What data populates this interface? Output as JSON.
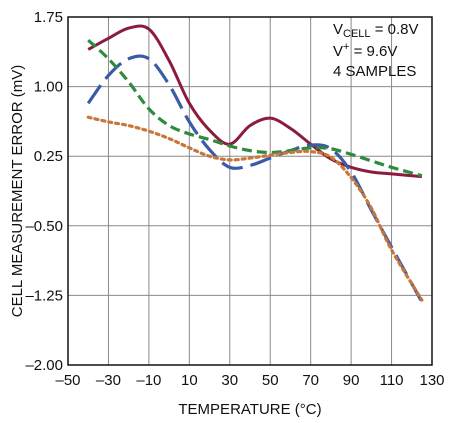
{
  "chart_data": {
    "type": "line",
    "title": "",
    "xlabel": "TEMPERATURE (°C)",
    "ylabel": "CELL MEASUREMENT ERROR (mV)",
    "xlim": [
      -50,
      130
    ],
    "ylim": [
      -2.0,
      1.75
    ],
    "x_ticks": [
      -50,
      -30,
      -10,
      10,
      30,
      50,
      70,
      90,
      110,
      130
    ],
    "x_tick_labels": [
      "–50",
      "–30",
      "–10",
      "10",
      "30",
      "50",
      "70",
      "90",
      "110",
      "130"
    ],
    "y_ticks": [
      -2.0,
      -1.25,
      -0.5,
      0.25,
      1.0,
      1.75
    ],
    "y_tick_labels": [
      "–2.00",
      "–1.25",
      "–0.50",
      "0.25",
      "1.00",
      "1.75"
    ],
    "grid": true,
    "annotation": {
      "line1_main": "V",
      "line1_sub": "CELL",
      "line1_rest": " = 0.8V",
      "line2_main": "V",
      "line2_sup": "+",
      "line2_rest": " = 9.6V",
      "line3": "4 SAMPLES"
    },
    "series": [
      {
        "style": "solid",
        "color": "#8B1C3C",
        "x": [
          -40,
          -30,
          -20,
          -10,
          0,
          10,
          20,
          30,
          40,
          50,
          60,
          70,
          80,
          90,
          100,
          110,
          125
        ],
        "y": [
          1.4,
          1.52,
          1.63,
          1.62,
          1.28,
          0.82,
          0.53,
          0.38,
          0.58,
          0.66,
          0.55,
          0.38,
          0.22,
          0.13,
          0.08,
          0.06,
          0.03
        ]
      },
      {
        "style": "long-dash",
        "color": "#3A5BA8",
        "x": [
          -40,
          -30,
          -20,
          -10,
          0,
          10,
          20,
          30,
          40,
          50,
          60,
          70,
          80,
          90,
          100,
          110,
          125
        ],
        "y": [
          0.82,
          1.12,
          1.3,
          1.3,
          1.02,
          0.62,
          0.32,
          0.13,
          0.15,
          0.23,
          0.31,
          0.37,
          0.33,
          0.08,
          -0.33,
          -0.73,
          -1.32
        ]
      },
      {
        "style": "short-dash",
        "color": "#2E8B3E",
        "x": [
          -40,
          -30,
          -20,
          -10,
          0,
          10,
          20,
          30,
          40,
          50,
          60,
          70,
          80,
          90,
          100,
          110,
          125
        ],
        "y": [
          1.5,
          1.3,
          1.05,
          0.76,
          0.58,
          0.49,
          0.43,
          0.36,
          0.31,
          0.29,
          0.31,
          0.34,
          0.33,
          0.27,
          0.2,
          0.13,
          0.04
        ]
      },
      {
        "style": "dotted",
        "color": "#C8773A",
        "x": [
          -40,
          -30,
          -20,
          -10,
          0,
          10,
          20,
          30,
          40,
          50,
          60,
          70,
          80,
          90,
          100,
          110,
          125
        ],
        "y": [
          0.67,
          0.62,
          0.58,
          0.52,
          0.44,
          0.34,
          0.25,
          0.21,
          0.23,
          0.26,
          0.29,
          0.3,
          0.24,
          0.02,
          -0.31,
          -0.76,
          -1.3
        ]
      }
    ]
  }
}
